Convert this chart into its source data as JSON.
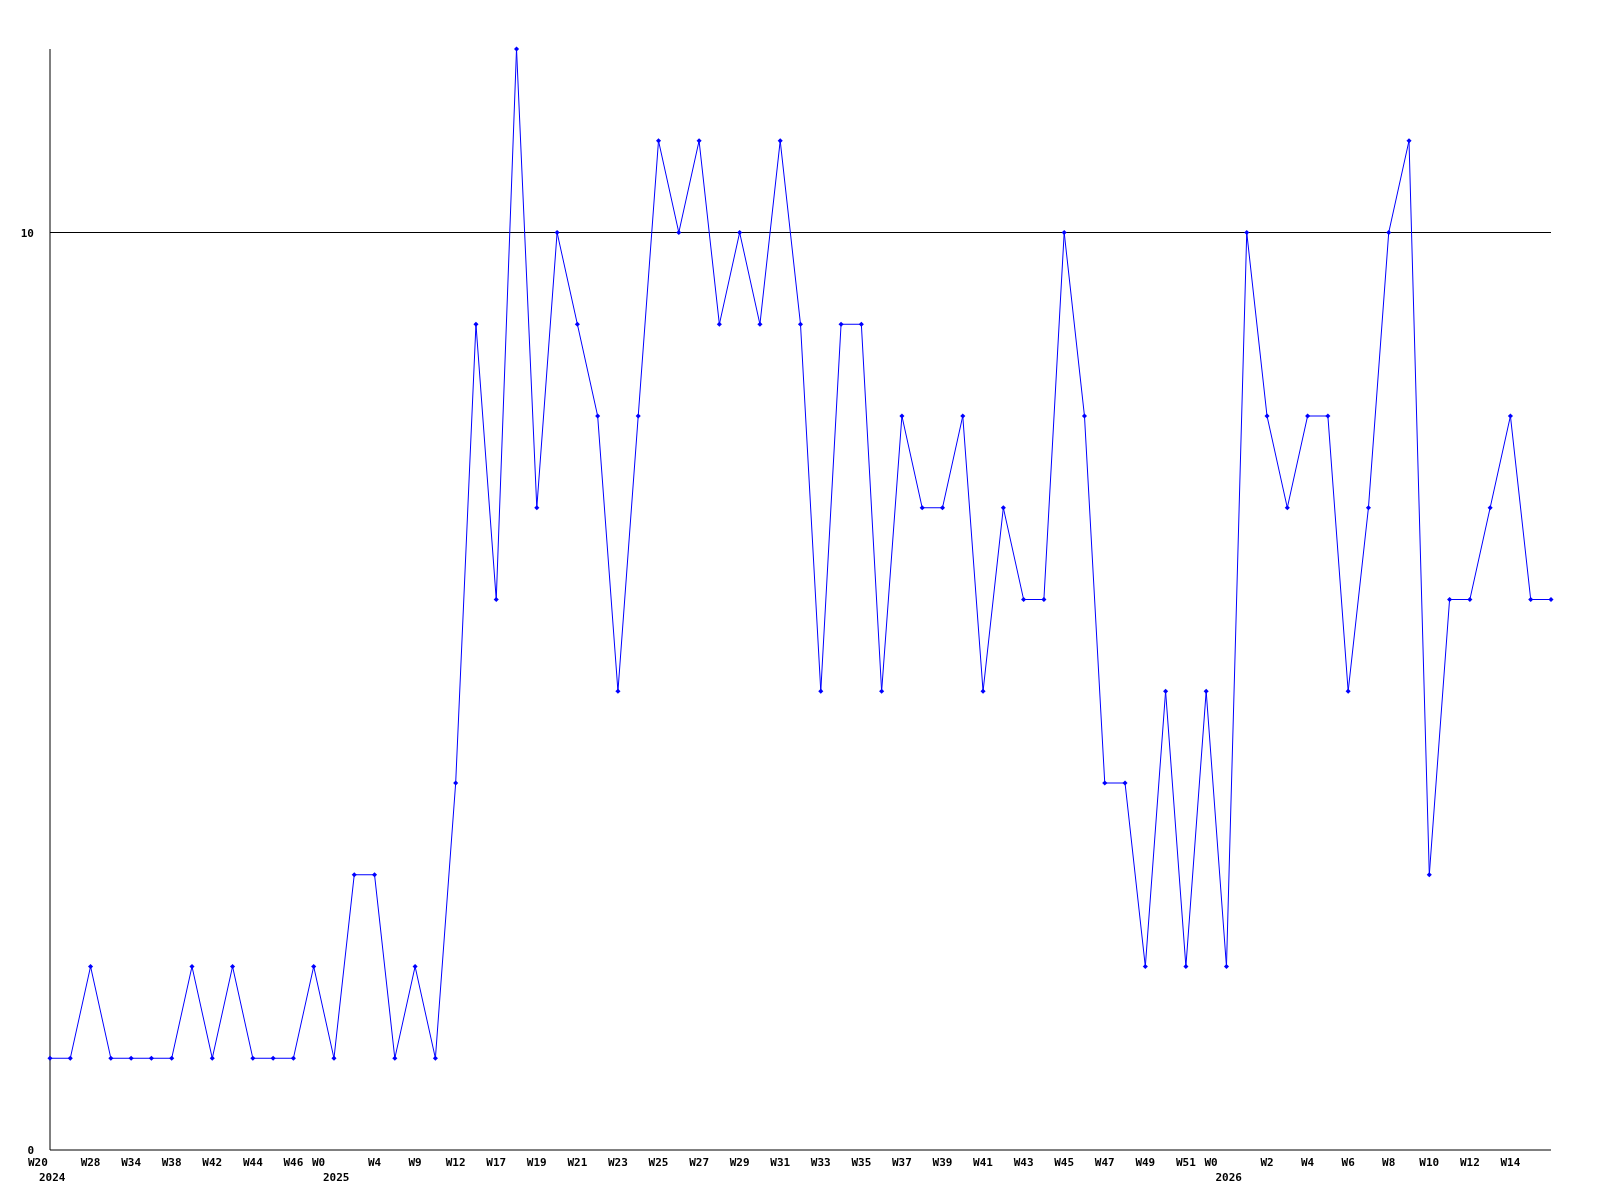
{
  "chart_data": {
    "type": "line",
    "categories": [
      "W20\n2024",
      null,
      "W28",
      null,
      "W34",
      null,
      "W38",
      null,
      "W42",
      null,
      "W44",
      null,
      "W46",
      null,
      "W0\n2025",
      null,
      "W4",
      null,
      "W9",
      null,
      "W12",
      null,
      "W17",
      null,
      "W19",
      null,
      "W21",
      null,
      "W23",
      null,
      "W25",
      null,
      "W27",
      null,
      "W29",
      null,
      "W31",
      null,
      "W33",
      null,
      "W35",
      null,
      "W37",
      null,
      "W39",
      null,
      "W41",
      null,
      "W43",
      null,
      "W45",
      null,
      "W47",
      null,
      "W49",
      null,
      "W51",
      null,
      "W0\n2026",
      null,
      "W2",
      null,
      "W4",
      null,
      "W6",
      null,
      "W8",
      null,
      "W10",
      null,
      "W12",
      null,
      "W14",
      null,
      null
    ],
    "series": [
      {
        "color": "#0000ff",
        "values": [
          1,
          1,
          2,
          1,
          1,
          1,
          1,
          2,
          1,
          2,
          1,
          1,
          1,
          2,
          1,
          3,
          3,
          1,
          2,
          1,
          4,
          9,
          6,
          12,
          7,
          10,
          9,
          8,
          5,
          8,
          11,
          10,
          11,
          9,
          10,
          9,
          11,
          9,
          5,
          9,
          9,
          5,
          8,
          7,
          7,
          8,
          5,
          7,
          6,
          6,
          10,
          8,
          4,
          4,
          2,
          5,
          2,
          5,
          2,
          10,
          8,
          7,
          8,
          8,
          5,
          7,
          10,
          11,
          3,
          6,
          6,
          7,
          8,
          6,
          6
        ]
      }
    ],
    "ylim": [
      0,
      12
    ],
    "yticks": [
      0,
      10
    ],
    "grid": "y",
    "marker": "diamond",
    "line_style": "solid"
  }
}
